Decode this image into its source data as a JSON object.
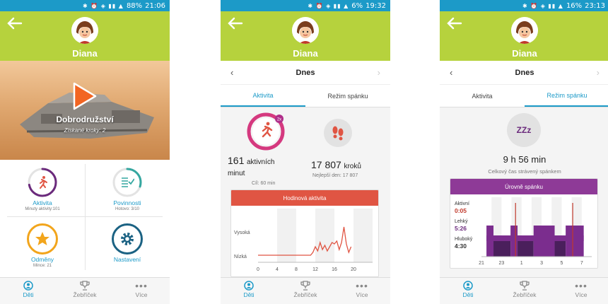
{
  "phone1": {
    "status": {
      "battery": "88%",
      "time": "21:06"
    },
    "username": "Diana",
    "hero": {
      "title": "Dobrodružství",
      "subtitle": "Získané kroky: 2"
    },
    "tiles": [
      {
        "label": "Aktivita",
        "sub": "Minuty aktivity:101",
        "color": "#6b2a7c"
      },
      {
        "label": "Povinnosti",
        "sub": "Hotovo: 3/10",
        "color": "#35a7a0"
      },
      {
        "label": "Odměny",
        "sub": "Mince: 21",
        "color": "#f2a51c"
      },
      {
        "label": "Nastavení",
        "sub": "",
        "color": "#1b6283"
      }
    ],
    "activity_progress": 0.72,
    "chores_progress": 0.3,
    "nav": [
      "Děti",
      "Žebříček",
      "Více"
    ]
  },
  "phone2": {
    "status": {
      "battery": "6%",
      "time": "19:32"
    },
    "username": "Diana",
    "date": "Dnes",
    "tabs": [
      "Aktivita",
      "Režim spánku"
    ],
    "active_minutes": {
      "value": "161",
      "unit_a": "aktivních",
      "unit_b": "minut",
      "goal": "Cíl: 60 min",
      "badge": "2x"
    },
    "steps": {
      "value": "17 807",
      "unit": "kroků",
      "best": "Nejlepší den: 17 807"
    },
    "chart": {
      "title": "Hodinová aktivita",
      "y_labels": [
        "Vysoká",
        "Nízká"
      ],
      "x_labels": [
        "0",
        "4",
        "8",
        "12",
        "16",
        "20"
      ]
    },
    "nav": [
      "Děti",
      "Žebříček",
      "Více"
    ]
  },
  "phone3": {
    "status": {
      "battery": "16%",
      "time": "23:13"
    },
    "username": "Diana",
    "date": "Dnes",
    "tabs": [
      "Aktivita",
      "Režim spánku"
    ],
    "sleep_icon": "ZZz",
    "total": "9 h 56 min",
    "total_sub": "Celkový čas strávený spánkem",
    "chart": {
      "title": "Úrovně spánku",
      "levels": [
        {
          "name": "Aktivní",
          "value": "0:05",
          "color": "#c0392b"
        },
        {
          "name": "Lehký",
          "value": "5:26",
          "color": "#6b2a7c"
        },
        {
          "name": "Hluboký",
          "value": "4:30",
          "color": "#333"
        }
      ],
      "x_labels": [
        "21",
        "23",
        "1",
        "3",
        "5",
        "7"
      ]
    },
    "nav": [
      "Děti",
      "Žebříček",
      "Více"
    ]
  },
  "colors": {
    "status": "#1c9ac8",
    "header": "#b6d23d",
    "accent": "#1c9ac8",
    "activity_red": "#e05543",
    "sleep_purple": "#8e3a97"
  },
  "chart_data": [
    {
      "type": "line",
      "title": "Hodinová aktivita",
      "xlabel": "",
      "ylabel": "",
      "x_ticks": [
        "0",
        "4",
        "8",
        "12",
        "16",
        "20"
      ],
      "y_ticks": [
        "Nízká",
        "Vysoká"
      ],
      "series": [
        {
          "name": "",
          "x": [
            0,
            1,
            2,
            3,
            4,
            5,
            6,
            7,
            8,
            9,
            10,
            11,
            11.5,
            12,
            12.5,
            13,
            13.5,
            14,
            14.5,
            15,
            15.5,
            16,
            16.5,
            17,
            17.5,
            18,
            18.5,
            19,
            19.5
          ],
          "y": [
            0,
            0,
            0,
            0,
            0,
            0,
            0,
            0,
            0,
            0,
            0,
            0,
            0.1,
            0.3,
            0.15,
            0.45,
            0.2,
            0.35,
            0.15,
            0.3,
            0.45,
            0.4,
            0.5,
            0.2,
            0.45,
            1.0,
            0.4,
            0.1,
            0.3
          ]
        }
      ]
    },
    {
      "type": "bar",
      "title": "Úrovně spánku",
      "x_ticks": [
        "21",
        "23",
        "1",
        "3",
        "5",
        "7"
      ],
      "series": [
        {
          "name": "Aktivní",
          "value": "0:05"
        },
        {
          "name": "Lehký",
          "value": "5:26"
        },
        {
          "name": "Hluboký",
          "value": "4:30"
        }
      ]
    }
  ]
}
